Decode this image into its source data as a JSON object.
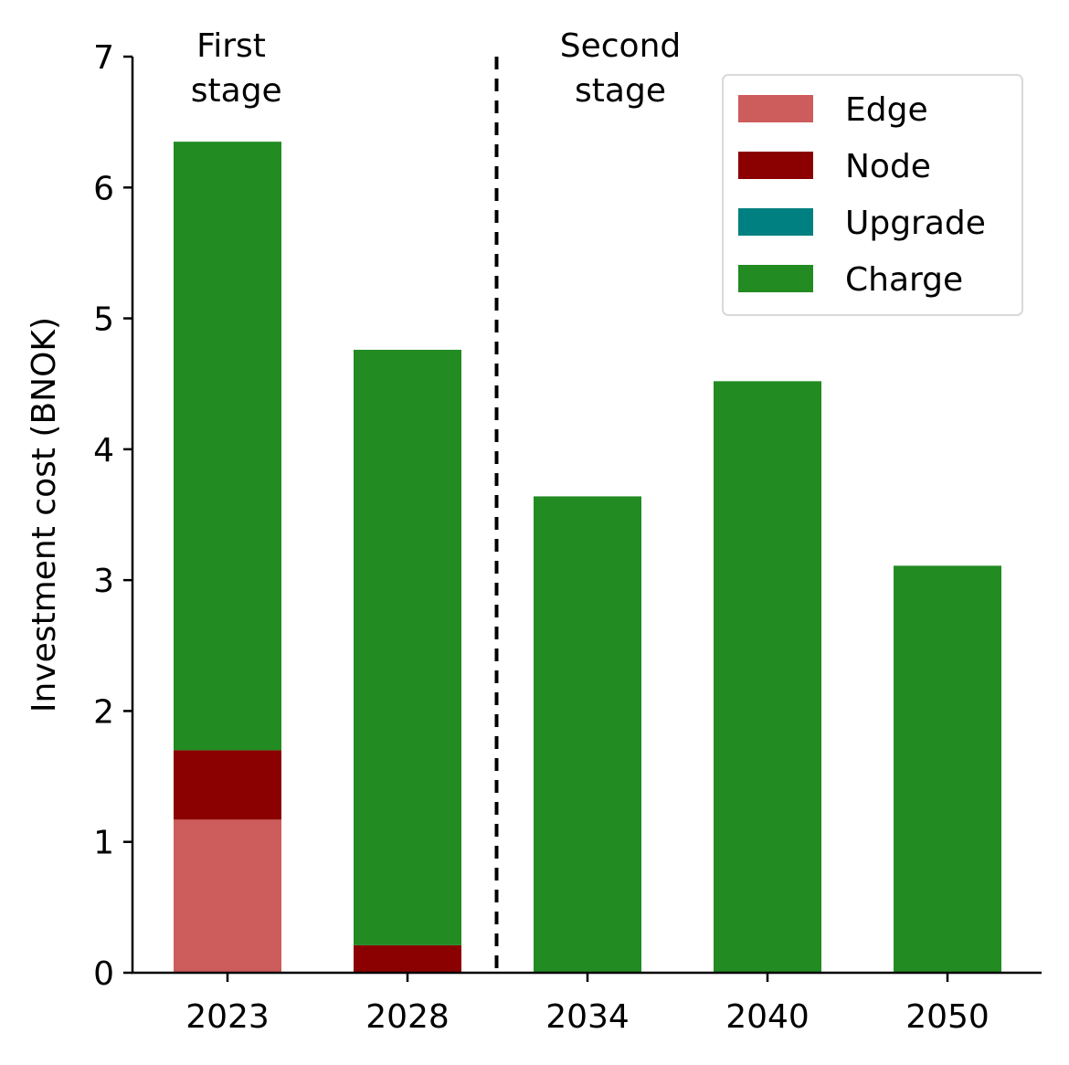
{
  "chart_data": {
    "type": "bar",
    "stacked": true,
    "categories": [
      "2023",
      "2028",
      "2034",
      "2040",
      "2050"
    ],
    "series": [
      {
        "name": "Edge",
        "color": "#cd5c5c",
        "values": [
          1.17,
          0.0,
          0.0,
          0.0,
          0.0
        ]
      },
      {
        "name": "Node",
        "color": "#8b0000",
        "values": [
          0.53,
          0.21,
          0.0,
          0.0,
          0.0
        ]
      },
      {
        "name": "Upgrade",
        "color": "#008080",
        "values": [
          0.0,
          0.0,
          0.0,
          0.0,
          0.0
        ]
      },
      {
        "name": "Charge",
        "color": "#228b22",
        "values": [
          4.65,
          4.55,
          3.64,
          4.52,
          3.11
        ]
      }
    ],
    "ylabel": "Investment cost (BNOK)",
    "xlabel": "",
    "ylim": [
      0,
      7
    ],
    "yticks": [
      "0",
      "1",
      "2",
      "3",
      "4",
      "5",
      "6",
      "7"
    ],
    "grid": false,
    "legend_position": "top-right",
    "divider": {
      "between": [
        "2028",
        "2034"
      ],
      "style": "dashed"
    },
    "annotations": [
      {
        "lines": [
          "First",
          " stage"
        ],
        "over": "first-stage"
      },
      {
        "lines": [
          "Second",
          "stage"
        ],
        "over": "second-stage"
      }
    ]
  }
}
